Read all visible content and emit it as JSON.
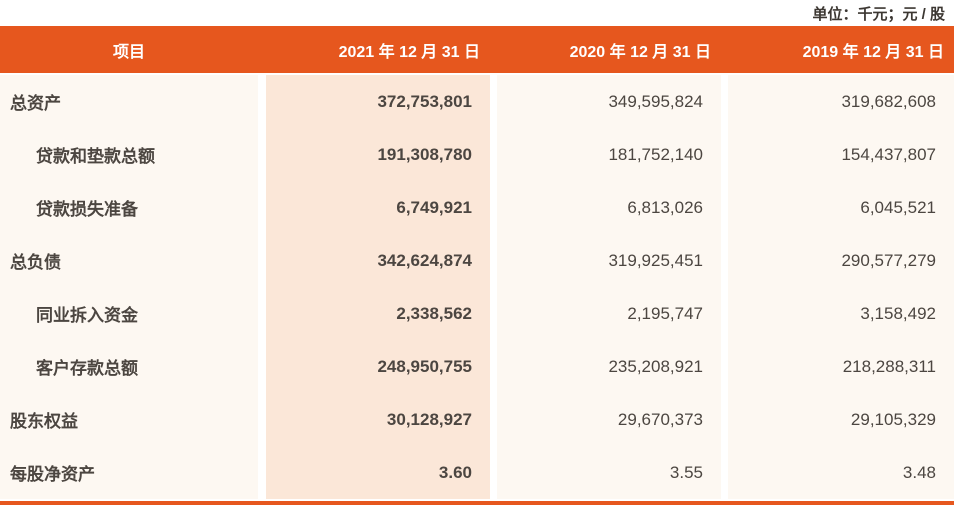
{
  "unit_note": "单位：千元；元 / 股",
  "table": {
    "headers": [
      "项目",
      "2021 年 12 月 31 日",
      "2020 年 12 月 31 日",
      "2019 年 12 月 31 日"
    ],
    "rows": [
      {
        "label": "总资产",
        "indent": false,
        "values": [
          "372,753,801",
          "349,595,824",
          "319,682,608"
        ]
      },
      {
        "label": "贷款和垫款总额",
        "indent": true,
        "values": [
          "191,308,780",
          "181,752,140",
          "154,437,807"
        ]
      },
      {
        "label": "贷款损失准备",
        "indent": true,
        "values": [
          "6,749,921",
          "6,813,026",
          "6,045,521"
        ]
      },
      {
        "label": "总负债",
        "indent": false,
        "values": [
          "342,624,874",
          "319,925,451",
          "290,577,279"
        ]
      },
      {
        "label": "同业拆入资金",
        "indent": true,
        "values": [
          "2,338,562",
          "2,195,747",
          "3,158,492"
        ]
      },
      {
        "label": "客户存款总额",
        "indent": true,
        "values": [
          "248,950,755",
          "235,208,921",
          "218,288,311"
        ]
      },
      {
        "label": "股东权益",
        "indent": false,
        "values": [
          "30,128,927",
          "29,670,373",
          "29,105,329"
        ]
      },
      {
        "label": "每股净资产",
        "indent": false,
        "values": [
          "3.60",
          "3.55",
          "3.48"
        ]
      }
    ]
  },
  "colors": {
    "accent": "#E6571E",
    "header_text": "#FFFFFF",
    "highlight_column_bg": "#FBE7D8",
    "column_bg": "#FDF8F2",
    "text": "#4C4641",
    "text_dark": "#3C3732"
  }
}
